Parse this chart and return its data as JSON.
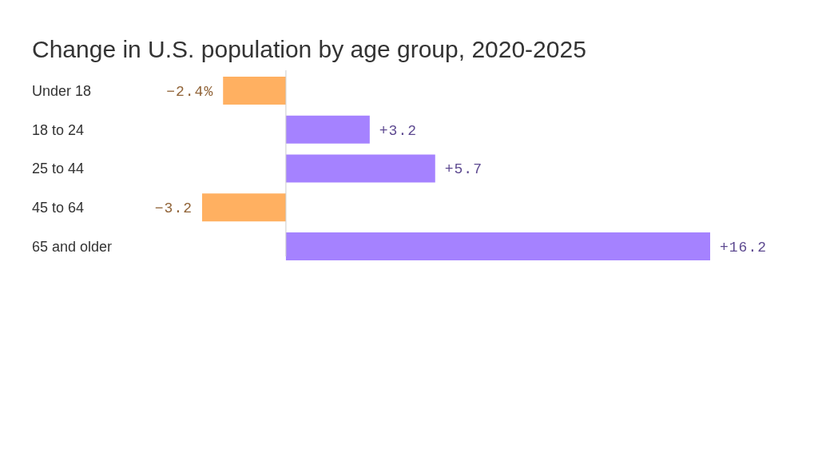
{
  "chart_data": {
    "type": "bar",
    "orientation": "horizontal",
    "title": "Change in U.S. population by age group, 2020-2025",
    "categories": [
      "Under 18",
      "18 to 24",
      "25 to 44",
      "45 to 64",
      "65 and older"
    ],
    "values": [
      -2.4,
      3.2,
      5.7,
      -3.2,
      16.2
    ],
    "colors": [
      "#ffb061",
      "#a582ff",
      "#a582ff",
      "#ffb061",
      "#a582ff"
    ],
    "value_labels": [
      "−2.4%",
      "+3.2",
      "+5.7",
      "−3.2",
      "+16.2"
    ]
  }
}
